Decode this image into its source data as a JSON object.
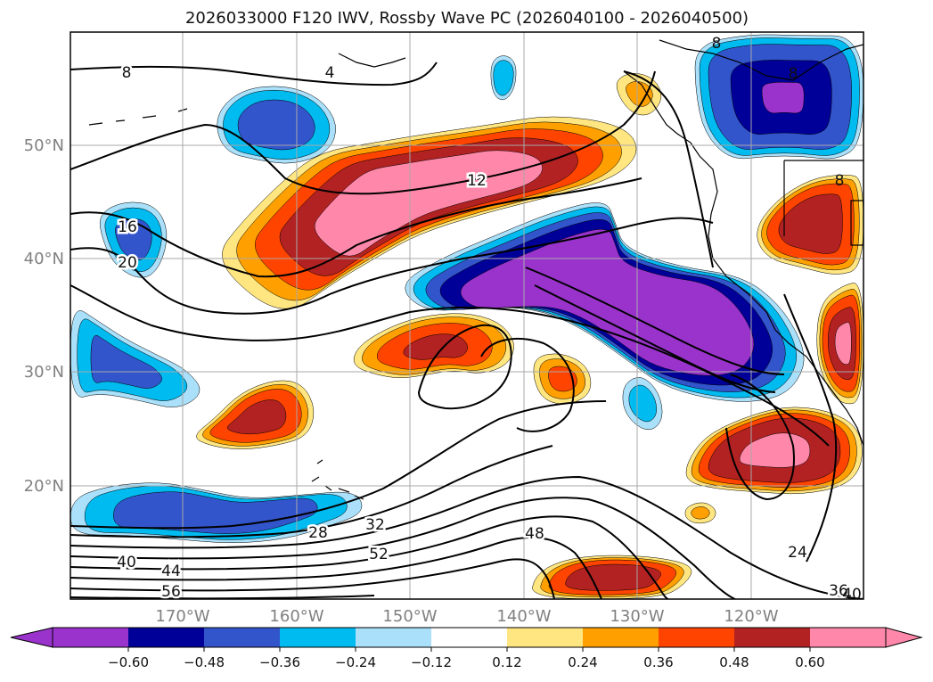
{
  "chart_data": {
    "type": "contour-map",
    "title": "2026033000 F120 IWV, Rossby Wave PC (2026040100 - 2026040500)",
    "x_ticks": [
      "170°W",
      "160°W",
      "150°W",
      "140°W",
      "130°W",
      "120°W"
    ],
    "y_ticks": [
      "50°N",
      "40°N",
      "30°N",
      "20°N"
    ],
    "colorbar": {
      "colors": [
        "#9933cc",
        "#000099",
        "#3355cc",
        "#00bbf0",
        "#aae0fa",
        "#ffffff",
        "#ffe680",
        "#ffa000",
        "#ff4400",
        "#b22222",
        "#ff88aa"
      ],
      "tick_labels": [
        "−0.60",
        "−0.48",
        "−0.36",
        "−0.24",
        "−0.12",
        "0.12",
        "0.24",
        "0.36",
        "0.48",
        "0.60"
      ],
      "extend": "both"
    },
    "contour_labels": [
      "8",
      "4",
      "8",
      "8",
      "8",
      "12",
      "16",
      "20",
      "24",
      "28",
      "32",
      "36",
      "40",
      "44",
      "48",
      "52",
      "56",
      "40"
    ]
  }
}
